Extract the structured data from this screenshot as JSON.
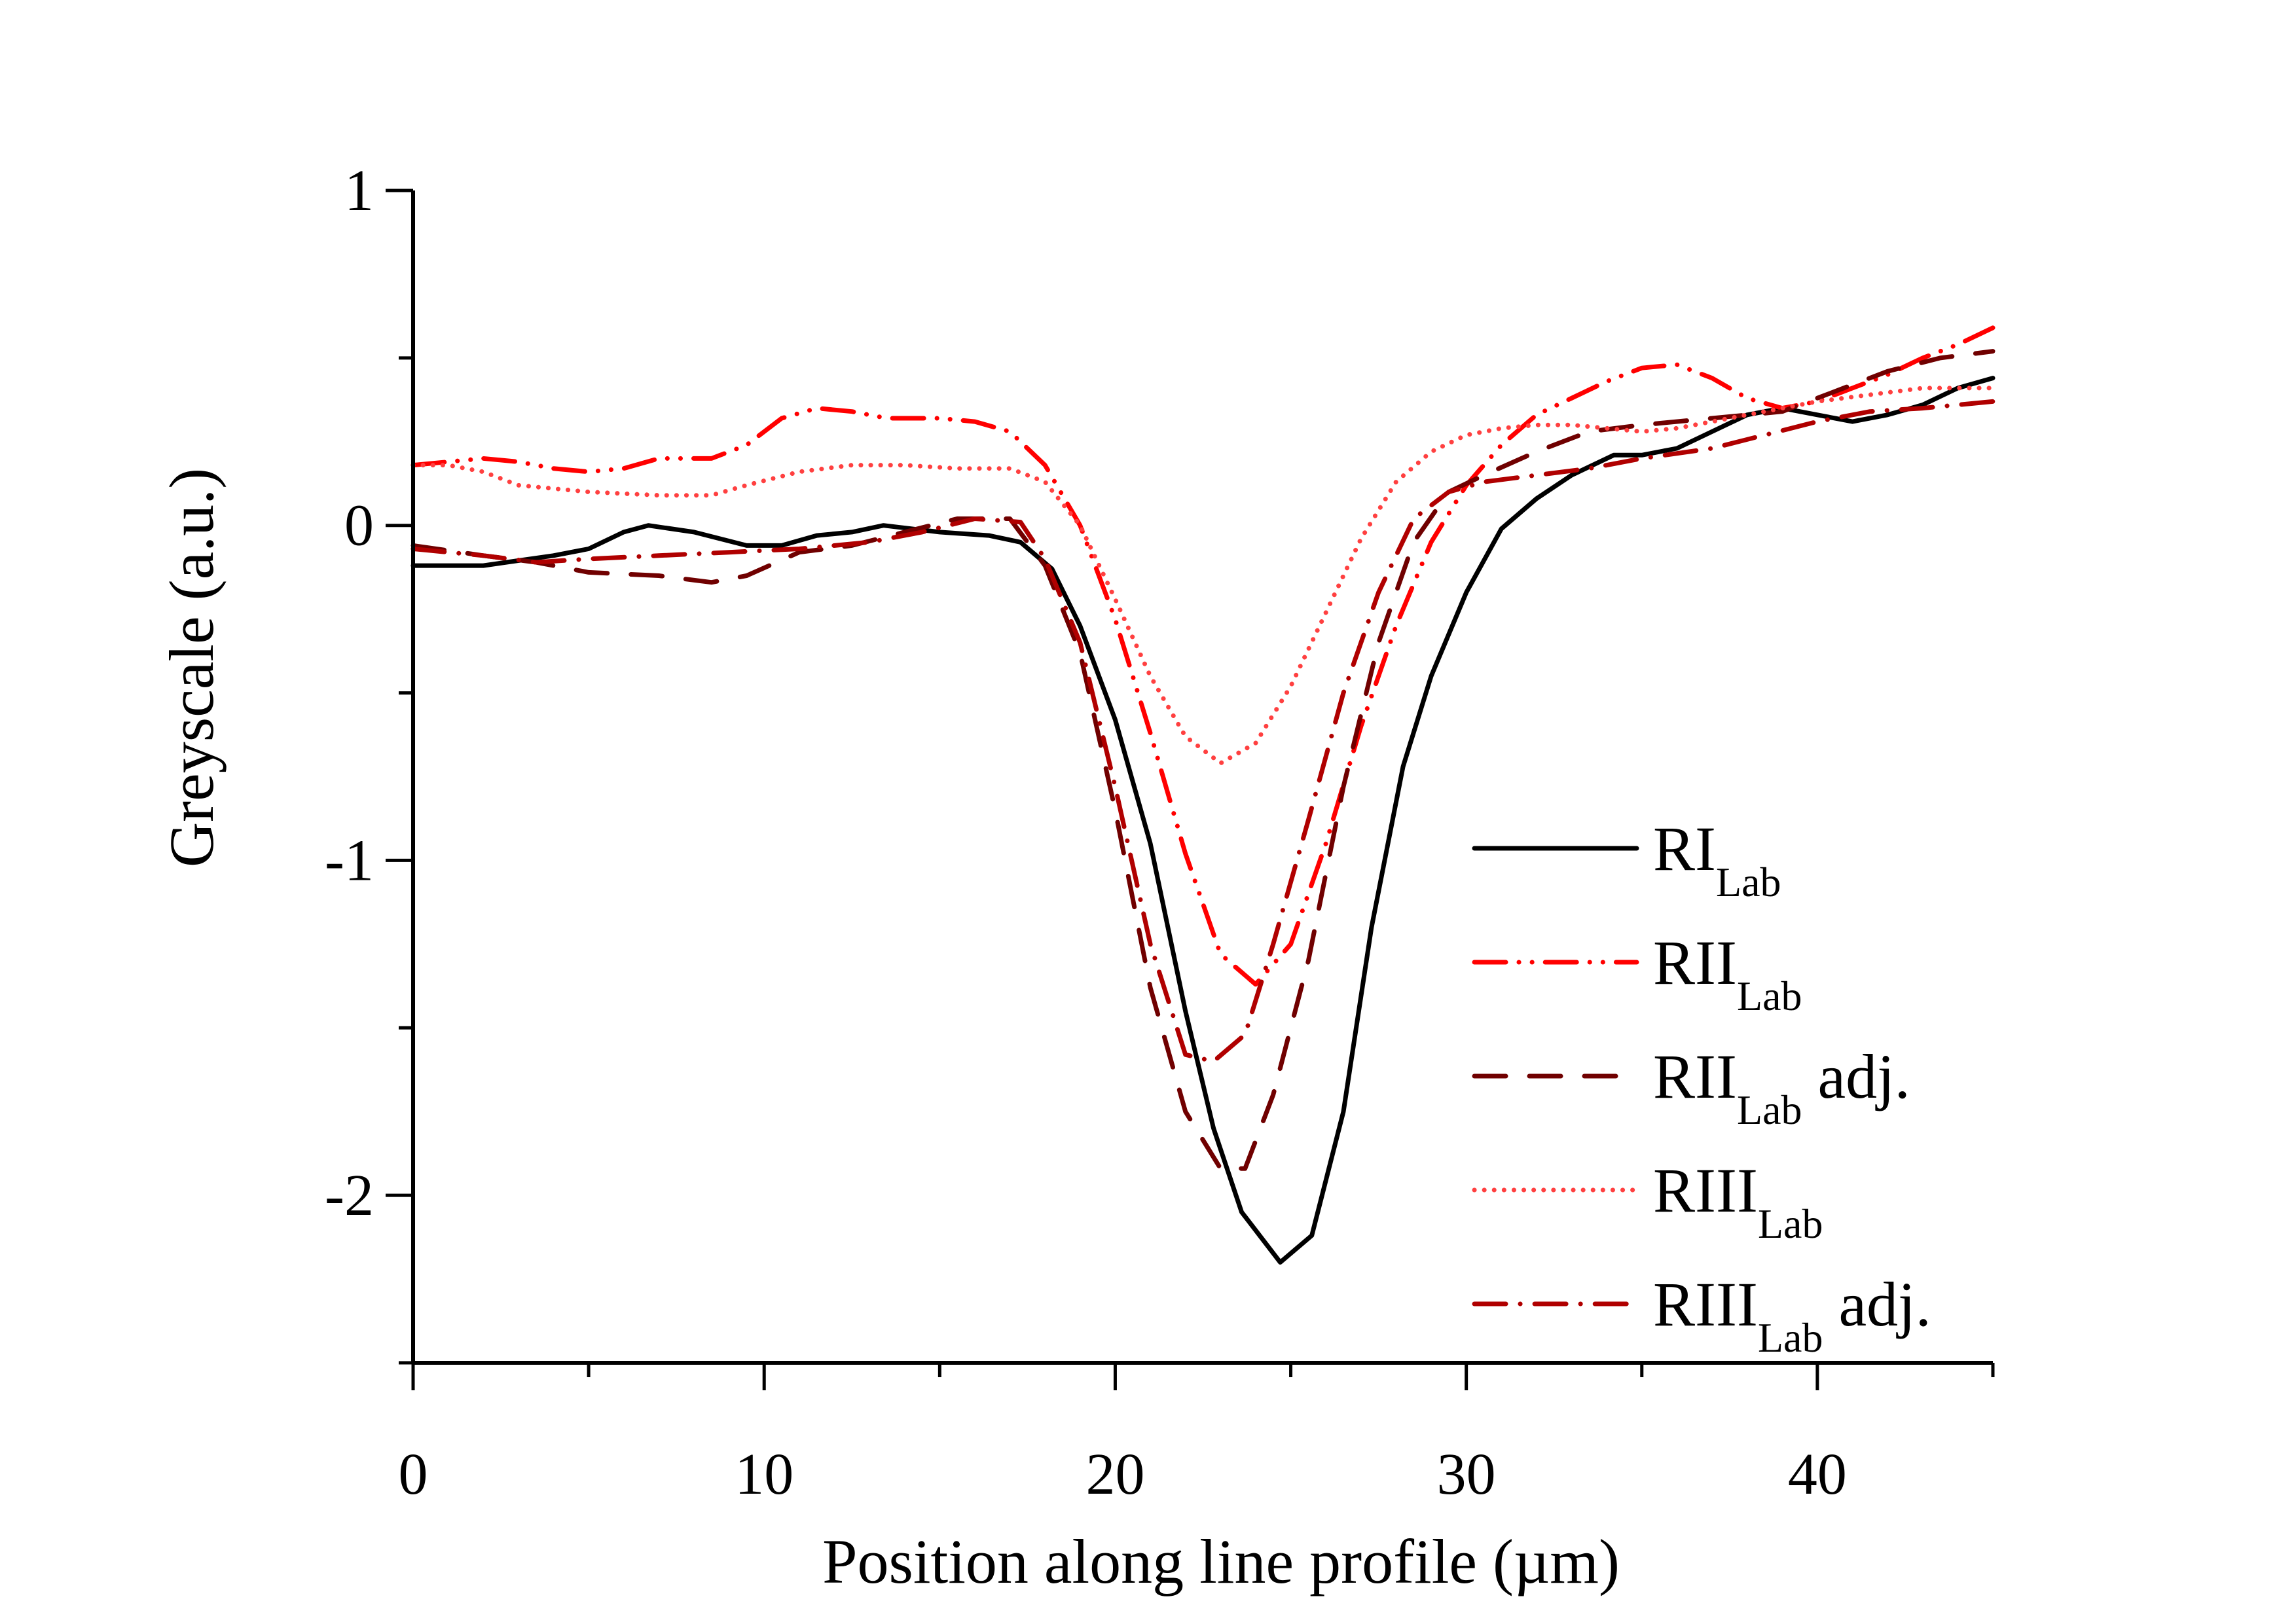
{
  "chart_data": {
    "type": "line",
    "title": "",
    "xlabel": "Position along line profile (µm)",
    "ylabel": "Greyscale (a.u.)",
    "xlim": [
      0,
      45
    ],
    "ylim": [
      -2.5,
      1
    ],
    "xticks": [
      0,
      10,
      20,
      30,
      40
    ],
    "xtick_labels": [
      "0",
      "10",
      "20",
      "30",
      "40"
    ],
    "yticks": [
      1,
      0,
      -1,
      -2
    ],
    "ytick_labels": [
      "1",
      "0",
      "-1",
      "-2"
    ],
    "grid": false,
    "legend_position": "bottom-right",
    "series": [
      {
        "name": "RI_Lab",
        "label_main": "RI",
        "label_sub": "Lab",
        "label_suffix": "",
        "color": "#000000",
        "style": "solid",
        "x": [
          0,
          2,
          4,
          5,
          6,
          6.7,
          8,
          9.5,
          10.5,
          11.5,
          12.5,
          13.4,
          15,
          16.4,
          17.3,
          18.2,
          19,
          20,
          21,
          22,
          22.8,
          23.6,
          24.7,
          25.6,
          26.5,
          27.3,
          28.2,
          29,
          30,
          31,
          32,
          33,
          34.2,
          35,
          36,
          37,
          38,
          39,
          40,
          41,
          42,
          43,
          44,
          45
        ],
        "y": [
          -0.12,
          -0.12,
          -0.09,
          -0.07,
          -0.02,
          0.0,
          -0.02,
          -0.06,
          -0.06,
          -0.03,
          -0.02,
          0.0,
          -0.02,
          -0.03,
          -0.05,
          -0.13,
          -0.3,
          -0.58,
          -0.95,
          -1.45,
          -1.8,
          -2.05,
          -2.2,
          -2.12,
          -1.75,
          -1.2,
          -0.72,
          -0.45,
          -0.2,
          -0.01,
          0.08,
          0.15,
          0.21,
          0.21,
          0.23,
          0.28,
          0.33,
          0.35,
          0.33,
          0.31,
          0.33,
          0.36,
          0.41,
          0.44
        ]
      },
      {
        "name": "RII_Lab",
        "label_main": "RII",
        "label_sub": "Lab",
        "label_suffix": "",
        "color": "#ff0000",
        "style": "dash-dot-dot",
        "x": [
          0,
          1,
          2,
          3,
          4,
          5,
          6,
          7,
          8.5,
          9.5,
          10.5,
          11.5,
          12.5,
          13.5,
          15,
          16,
          17,
          18,
          19,
          20,
          21,
          22,
          23,
          24,
          25,
          26,
          27,
          28,
          29,
          30,
          31,
          32,
          33,
          34,
          35,
          36,
          37,
          38,
          39,
          40,
          41,
          42,
          43,
          44,
          45
        ],
        "y": [
          0.18,
          0.19,
          0.2,
          0.19,
          0.17,
          0.16,
          0.17,
          0.2,
          0.2,
          0.24,
          0.32,
          0.35,
          0.34,
          0.32,
          0.32,
          0.31,
          0.28,
          0.18,
          0.0,
          -0.28,
          -0.62,
          -0.98,
          -1.28,
          -1.37,
          -1.25,
          -0.95,
          -0.6,
          -0.3,
          -0.05,
          0.12,
          0.24,
          0.33,
          0.38,
          0.43,
          0.47,
          0.48,
          0.44,
          0.38,
          0.35,
          0.37,
          0.41,
          0.45,
          0.5,
          0.54,
          0.59
        ]
      },
      {
        "name": "RII_Lab adj.",
        "label_main": "RII",
        "label_sub": "Lab",
        "label_suffix": " adj.",
        "color": "#700000",
        "style": "dash",
        "x": [
          0,
          2,
          3.5,
          5,
          7,
          8.5,
          9.5,
          11,
          12.5,
          14,
          15.5,
          17,
          18,
          19,
          20,
          21,
          22,
          23,
          23.7,
          24.5,
          25.5,
          26.5,
          27.5,
          28.5,
          29.5,
          30.5,
          32,
          33.5,
          35,
          37,
          39,
          40.5,
          42,
          43.5,
          45
        ],
        "y": [
          -0.06,
          -0.09,
          -0.11,
          -0.14,
          -0.15,
          -0.17,
          -0.15,
          -0.08,
          -0.06,
          -0.02,
          0.02,
          0.02,
          -0.12,
          -0.38,
          -0.85,
          -1.38,
          -1.75,
          -1.92,
          -1.92,
          -1.7,
          -1.3,
          -0.78,
          -0.35,
          -0.05,
          0.1,
          0.15,
          0.22,
          0.28,
          0.3,
          0.32,
          0.34,
          0.4,
          0.46,
          0.5,
          0.52
        ]
      },
      {
        "name": "RIII_Lab",
        "label_main": "RIII",
        "label_sub": "Lab",
        "label_suffix": "",
        "color": "#ff4040",
        "style": "dot",
        "x": [
          0,
          1,
          2,
          3,
          5,
          7,
          8.5,
          9.5,
          11,
          12.5,
          14,
          15.5,
          17,
          18,
          19,
          20,
          21,
          22,
          23,
          24,
          25,
          26,
          27,
          28,
          29,
          30,
          31,
          32,
          33,
          34,
          35,
          36,
          37,
          38,
          39,
          40,
          41.5,
          43,
          45
        ],
        "y": [
          0.18,
          0.18,
          0.16,
          0.12,
          0.1,
          0.09,
          0.09,
          0.12,
          0.16,
          0.18,
          0.18,
          0.17,
          0.17,
          0.13,
          0.0,
          -0.22,
          -0.45,
          -0.63,
          -0.71,
          -0.65,
          -0.48,
          -0.26,
          -0.04,
          0.13,
          0.22,
          0.27,
          0.29,
          0.3,
          0.3,
          0.29,
          0.28,
          0.29,
          0.31,
          0.33,
          0.35,
          0.37,
          0.39,
          0.41,
          0.41
        ]
      },
      {
        "name": "RIII_Lab adj.",
        "label_main": "RIII",
        "label_sub": "Lab",
        "label_suffix": " adj.",
        "color": "#b00000",
        "style": "dash-dot",
        "x": [
          0,
          2,
          3.5,
          5,
          7,
          9,
          11,
          13,
          14.5,
          16,
          17.3,
          18,
          19,
          20,
          21,
          22,
          22.8,
          23.7,
          24.5,
          25.5,
          26.5,
          27.5,
          28.5,
          29.5,
          30.5,
          32,
          33.5,
          35,
          37,
          38.5,
          40,
          41.5,
          43,
          45
        ],
        "y": [
          -0.07,
          -0.09,
          -0.11,
          -0.1,
          -0.09,
          -0.08,
          -0.07,
          -0.05,
          -0.02,
          0.02,
          0.01,
          -0.1,
          -0.35,
          -0.78,
          -1.25,
          -1.58,
          -1.6,
          -1.52,
          -1.25,
          -0.88,
          -0.5,
          -0.2,
          0.02,
          0.1,
          0.13,
          0.15,
          0.17,
          0.2,
          0.23,
          0.27,
          0.31,
          0.34,
          0.35,
          0.37
        ]
      }
    ]
  }
}
